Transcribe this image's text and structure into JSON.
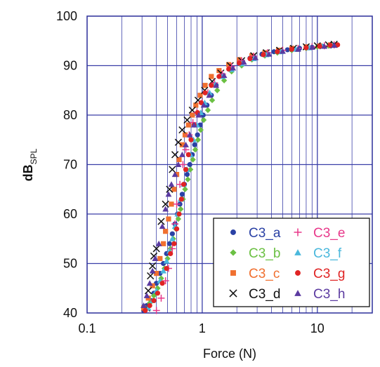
{
  "chart_data": {
    "type": "scatter",
    "x_scale": "log",
    "xlim": [
      0.1,
      30
    ],
    "ylim": [
      40,
      100
    ],
    "grid": true,
    "legend_position": "bottom-right",
    "xlabel": "Force (N)",
    "ylabel_main": "dB",
    "ylabel_sub": "SPL",
    "x_ticks": [
      {
        "value": 0.1,
        "label": "0.1"
      },
      {
        "value": 1,
        "label": "1"
      },
      {
        "value": 10,
        "label": "10"
      }
    ],
    "y_ticks": [
      {
        "value": 40,
        "label": "40"
      },
      {
        "value": 50,
        "label": "50"
      },
      {
        "value": 60,
        "label": "60"
      },
      {
        "value": 70,
        "label": "70"
      },
      {
        "value": 80,
        "label": "80"
      },
      {
        "value": 90,
        "label": "90"
      },
      {
        "value": 100,
        "label": "100"
      }
    ],
    "series": [
      {
        "name": "C3_a",
        "marker": "circle",
        "color": "#2a41a5",
        "points": [
          [
            0.31,
            40.5
          ],
          [
            0.33,
            41.5
          ],
          [
            0.36,
            42.5
          ],
          [
            0.38,
            44
          ],
          [
            0.4,
            46
          ],
          [
            0.43,
            48
          ],
          [
            0.46,
            50
          ],
          [
            0.49,
            52
          ],
          [
            0.52,
            54
          ],
          [
            0.55,
            56
          ],
          [
            0.58,
            58
          ],
          [
            0.61,
            60
          ],
          [
            0.64,
            62
          ],
          [
            0.67,
            64
          ],
          [
            0.7,
            66
          ],
          [
            0.74,
            68
          ],
          [
            0.78,
            70
          ],
          [
            0.82,
            72
          ],
          [
            0.86,
            74
          ],
          [
            0.91,
            76
          ],
          [
            0.96,
            78
          ],
          [
            1.02,
            80
          ],
          [
            1.1,
            82
          ],
          [
            1.2,
            84
          ],
          [
            1.32,
            86
          ],
          [
            1.5,
            88
          ],
          [
            1.75,
            89.5
          ],
          [
            2.1,
            90.5
          ],
          [
            2.6,
            91.5
          ],
          [
            3.3,
            92.3
          ],
          [
            4.2,
            92.8
          ],
          [
            5.5,
            93.2
          ],
          [
            7,
            93.5
          ],
          [
            9,
            93.7
          ],
          [
            11,
            93.9
          ],
          [
            13,
            94
          ]
        ]
      },
      {
        "name": "C3_b",
        "marker": "diamond",
        "color": "#6bc043",
        "points": [
          [
            0.32,
            41
          ],
          [
            0.35,
            42
          ],
          [
            0.38,
            43.5
          ],
          [
            0.41,
            45
          ],
          [
            0.44,
            47
          ],
          [
            0.47,
            49
          ],
          [
            0.5,
            51
          ],
          [
            0.53,
            53
          ],
          [
            0.56,
            55
          ],
          [
            0.59,
            57
          ],
          [
            0.62,
            59
          ],
          [
            0.65,
            61
          ],
          [
            0.68,
            63
          ],
          [
            0.71,
            65
          ],
          [
            0.75,
            67
          ],
          [
            0.79,
            69
          ],
          [
            0.83,
            71
          ],
          [
            0.87,
            73
          ],
          [
            0.92,
            75
          ],
          [
            0.97,
            77
          ],
          [
            1.03,
            79
          ],
          [
            1.12,
            81
          ],
          [
            1.22,
            83
          ],
          [
            1.35,
            85
          ],
          [
            1.55,
            87
          ],
          [
            1.8,
            88.8
          ],
          [
            2.2,
            90
          ],
          [
            2.7,
            91.2
          ],
          [
            3.5,
            92
          ],
          [
            4.5,
            92.6
          ],
          [
            6,
            93.1
          ],
          [
            8,
            93.5
          ],
          [
            10,
            93.8
          ],
          [
            12.5,
            94
          ]
        ]
      },
      {
        "name": "C3_c",
        "marker": "square",
        "color": "#f07030",
        "points": [
          [
            0.31,
            41
          ],
          [
            0.34,
            43
          ],
          [
            0.37,
            45.5
          ],
          [
            0.4,
            48
          ],
          [
            0.43,
            51
          ],
          [
            0.46,
            54
          ],
          [
            0.48,
            56.5
          ],
          [
            0.51,
            59
          ],
          [
            0.54,
            62
          ],
          [
            0.57,
            65
          ],
          [
            0.6,
            68
          ],
          [
            0.63,
            71
          ],
          [
            0.67,
            74
          ],
          [
            0.71,
            76
          ],
          [
            0.76,
            78
          ],
          [
            0.82,
            80
          ],
          [
            0.88,
            82
          ],
          [
            0.96,
            84
          ],
          [
            1.06,
            86
          ],
          [
            1.2,
            87.8
          ],
          [
            1.4,
            89
          ],
          [
            1.7,
            90.2
          ],
          [
            2.1,
            91.2
          ],
          [
            2.7,
            92
          ],
          [
            3.5,
            92.6
          ],
          [
            4.6,
            93.1
          ],
          [
            6,
            93.5
          ],
          [
            8,
            93.8
          ],
          [
            10.5,
            94
          ],
          [
            13,
            94.2
          ]
        ]
      },
      {
        "name": "C3_d",
        "marker": "x",
        "color": "#111111",
        "points": [
          [
            0.33,
            41
          ],
          [
            0.34,
            44.5
          ],
          [
            0.355,
            47.5
          ],
          [
            0.37,
            49.5
          ],
          [
            0.38,
            51.5
          ],
          [
            0.4,
            53
          ],
          [
            0.44,
            58.5
          ],
          [
            0.48,
            62
          ],
          [
            0.52,
            65
          ],
          [
            0.55,
            69
          ],
          [
            0.58,
            72
          ],
          [
            0.62,
            74.5
          ],
          [
            0.67,
            77
          ],
          [
            0.74,
            79
          ],
          [
            0.82,
            81
          ],
          [
            0.92,
            83
          ],
          [
            1.05,
            85
          ],
          [
            1.22,
            86.8
          ],
          [
            1.45,
            88.5
          ],
          [
            1.75,
            90
          ],
          [
            2.2,
            91
          ],
          [
            2.8,
            92
          ],
          [
            3.6,
            92.6
          ],
          [
            4.7,
            93.1
          ],
          [
            6.2,
            93.5
          ],
          [
            8,
            93.8
          ],
          [
            10,
            94
          ],
          [
            12.5,
            94.2
          ],
          [
            14,
            94.3
          ]
        ]
      },
      {
        "name": "C3_e",
        "marker": "plus",
        "color": "#e8388a",
        "points": [
          [
            0.4,
            40.5
          ],
          [
            0.44,
            43
          ],
          [
            0.48,
            46.5
          ],
          [
            0.51,
            49
          ],
          [
            0.55,
            53
          ],
          [
            0.58,
            58
          ],
          [
            0.6,
            62
          ],
          [
            0.64,
            66
          ],
          [
            0.68,
            70
          ],
          [
            0.72,
            73
          ],
          [
            0.77,
            76
          ],
          [
            0.83,
            78.5
          ],
          [
            0.9,
            80.5
          ],
          [
            1.0,
            82.5
          ],
          [
            1.12,
            84.5
          ],
          [
            1.28,
            86.5
          ],
          [
            1.5,
            88.3
          ],
          [
            1.8,
            89.8
          ],
          [
            2.2,
            91
          ],
          [
            2.8,
            91.9
          ],
          [
            3.7,
            92.6
          ],
          [
            5,
            93.1
          ],
          [
            6.8,
            93.5
          ],
          [
            9,
            93.8
          ],
          [
            11.5,
            94
          ],
          [
            14,
            94.2
          ]
        ]
      },
      {
        "name": "C3_f",
        "marker": "triangle",
        "color": "#4ab8dc",
        "points": [
          [
            0.34,
            41
          ],
          [
            0.37,
            42.5
          ],
          [
            0.4,
            44.5
          ],
          [
            0.43,
            46.5
          ],
          [
            0.46,
            48.5
          ],
          [
            0.49,
            50.5
          ],
          [
            0.52,
            52.5
          ],
          [
            0.55,
            55
          ],
          [
            0.58,
            57.5
          ],
          [
            0.61,
            60
          ],
          [
            0.65,
            63
          ],
          [
            0.69,
            66
          ],
          [
            0.74,
            69
          ],
          [
            0.79,
            72
          ],
          [
            0.84,
            75
          ],
          [
            0.9,
            78
          ],
          [
            0.97,
            80.5
          ],
          [
            1.05,
            82.5
          ],
          [
            1.16,
            84.5
          ],
          [
            1.3,
            86.2
          ],
          [
            1.5,
            87.8
          ],
          [
            1.8,
            89.2
          ],
          [
            2.2,
            90.4
          ],
          [
            2.8,
            91.4
          ],
          [
            3.6,
            92.2
          ],
          [
            4.8,
            92.8
          ],
          [
            6.5,
            93.3
          ],
          [
            8.5,
            93.6
          ],
          [
            11,
            93.9
          ],
          [
            13.5,
            94.1
          ]
        ]
      },
      {
        "name": "C3_g",
        "marker": "circle",
        "color": "#e02424",
        "points": [
          [
            0.32,
            40.5
          ],
          [
            0.35,
            41.5
          ],
          [
            0.38,
            42.5
          ],
          [
            0.41,
            44
          ],
          [
            0.45,
            46
          ],
          [
            0.49,
            49
          ],
          [
            0.53,
            52
          ],
          [
            0.57,
            54
          ],
          [
            0.6,
            57
          ],
          [
            0.63,
            60
          ],
          [
            0.66,
            63
          ],
          [
            0.69,
            66
          ],
          [
            0.72,
            69
          ],
          [
            0.76,
            72
          ],
          [
            0.8,
            75
          ],
          [
            0.85,
            78
          ],
          [
            0.91,
            80.5
          ],
          [
            0.98,
            82.5
          ],
          [
            1.06,
            84.5
          ],
          [
            1.2,
            86
          ],
          [
            1.4,
            87.8
          ],
          [
            1.7,
            89.3
          ],
          [
            2.1,
            90.5
          ],
          [
            2.6,
            91.4
          ],
          [
            3.4,
            92.2
          ],
          [
            4.5,
            92.8
          ],
          [
            6,
            93.3
          ],
          [
            8,
            93.6
          ],
          [
            10.5,
            93.9
          ],
          [
            13,
            94.1
          ],
          [
            15,
            94.2
          ]
        ]
      },
      {
        "name": "C3_h",
        "marker": "triangle",
        "color": "#5b3aa0",
        "points": [
          [
            0.31,
            41.5
          ],
          [
            0.33,
            43.5
          ],
          [
            0.35,
            46
          ],
          [
            0.37,
            48.5
          ],
          [
            0.39,
            51
          ],
          [
            0.42,
            54
          ],
          [
            0.45,
            57.5
          ],
          [
            0.48,
            61
          ],
          [
            0.51,
            64
          ],
          [
            0.54,
            66
          ],
          [
            0.58,
            68
          ],
          [
            0.62,
            70
          ],
          [
            0.67,
            72
          ],
          [
            0.72,
            74
          ],
          [
            0.78,
            76
          ],
          [
            0.85,
            78
          ],
          [
            0.93,
            80
          ],
          [
            1.03,
            82
          ],
          [
            1.15,
            84
          ],
          [
            1.32,
            86
          ],
          [
            1.55,
            88
          ],
          [
            1.85,
            89.5
          ],
          [
            2.3,
            90.7
          ],
          [
            2.9,
            91.6
          ],
          [
            3.8,
            92.3
          ],
          [
            5,
            92.9
          ],
          [
            6.8,
            93.3
          ],
          [
            9,
            93.7
          ],
          [
            11.5,
            93.9
          ],
          [
            14,
            94.1
          ]
        ]
      }
    ]
  }
}
